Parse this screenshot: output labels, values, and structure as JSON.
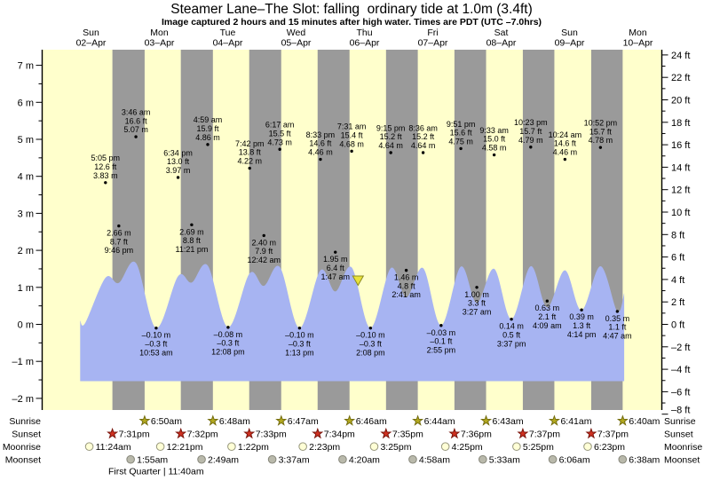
{
  "title": "Steamer Lane–The Slot: falling  ordinary tide at 1.0m (3.4ft)",
  "subtitle": "Image captured 2 hours and 15 minutes after high water. Times are PDT (UTC –7.0hrs)",
  "colors": {
    "plot_bg": "#ffffcc",
    "night_band": "#9a9a9a",
    "tide_fill": "#a7b4f2",
    "day_label": "#e53e30",
    "sunrise_star": "#b2a81f",
    "sunrise_star_edge": "#756e10",
    "sunset_star": "#d03020",
    "sunset_star_edge": "#7a150c",
    "moonrise_circle": "#ffffd6",
    "moonrise_circle_edge": "#99997f",
    "moonset_circle": "#b9b9ab",
    "moonset_circle_edge": "#88887c",
    "now_marker": "#e9e23a",
    "now_marker_edge": "#8a8a20"
  },
  "chart_data": {
    "type": "area",
    "title": "Steamer Lane–The Slot: falling  ordinary tide at 1.0m (3.4ft)",
    "subtitle": "Image captured 2 hours and 15 minutes after high water. Times are PDT (UTC –7.0hrs)",
    "y_left": {
      "unit": "m",
      "ticks": [
        7,
        6,
        5,
        4,
        3,
        2,
        1,
        0,
        -1,
        -2
      ]
    },
    "y_right": {
      "unit": "ft",
      "ticks": [
        24,
        22,
        20,
        18,
        16,
        14,
        12,
        10,
        8,
        6,
        4,
        2,
        0,
        -2,
        -4,
        -6,
        -8
      ]
    },
    "days": [
      {
        "name": "Sun",
        "date": "02–Apr"
      },
      {
        "name": "Mon",
        "date": "03–Apr"
      },
      {
        "name": "Tue",
        "date": "04–Apr"
      },
      {
        "name": "Wed",
        "date": "05–Apr"
      },
      {
        "name": "Thu",
        "date": "06–Apr"
      },
      {
        "name": "Fri",
        "date": "07–Apr"
      },
      {
        "name": "Sat",
        "date": "08–Apr"
      },
      {
        "name": "Sun",
        "date": "09–Apr"
      },
      {
        "name": "Mon",
        "date": "10–Apr"
      }
    ],
    "tide_events": [
      {
        "day": 0,
        "time": "5:05 pm",
        "m": 3.83,
        "ft": 12.6,
        "kind": "high"
      },
      {
        "day": 0,
        "time": "9:46 pm",
        "m": 2.66,
        "ft": 8.7,
        "kind": "low"
      },
      {
        "day": 1,
        "time": "3:46 am",
        "m": 5.07,
        "ft": 16.6,
        "kind": "high"
      },
      {
        "day": 1,
        "time": "10:53 am",
        "m": -0.1,
        "ft": -0.3,
        "kind": "low"
      },
      {
        "day": 1,
        "time": "6:34 pm",
        "m": 3.97,
        "ft": 13.0,
        "kind": "high"
      },
      {
        "day": 1,
        "time": "11:21 pm",
        "m": 2.69,
        "ft": 8.8,
        "kind": "low"
      },
      {
        "day": 2,
        "time": "4:59 am",
        "m": 4.86,
        "ft": 15.9,
        "kind": "high"
      },
      {
        "day": 2,
        "time": "12:08 pm",
        "m": -0.08,
        "ft": -0.3,
        "kind": "low"
      },
      {
        "day": 2,
        "time": "7:42 pm",
        "m": 4.22,
        "ft": 13.8,
        "kind": "high"
      },
      {
        "day": 3,
        "time": "12:42 am",
        "m": 2.4,
        "ft": 7.9,
        "kind": "low"
      },
      {
        "day": 3,
        "time": "6:17 am",
        "m": 4.73,
        "ft": 15.5,
        "kind": "high"
      },
      {
        "day": 3,
        "time": "1:13 pm",
        "m": -0.1,
        "ft": -0.3,
        "kind": "low"
      },
      {
        "day": 3,
        "time": "8:33 pm",
        "m": 4.46,
        "ft": 14.6,
        "kind": "high"
      },
      {
        "day": 4,
        "time": "1:47 am",
        "m": 1.95,
        "ft": 6.4,
        "kind": "low"
      },
      {
        "day": 4,
        "time": "7:31 am",
        "m": 4.68,
        "ft": 15.4,
        "kind": "high"
      },
      {
        "day": 4,
        "time": "2:08 pm",
        "m": -0.1,
        "ft": -0.3,
        "kind": "low"
      },
      {
        "day": 4,
        "time": "9:15 pm",
        "m": 4.64,
        "ft": 15.2,
        "kind": "high"
      },
      {
        "day": 5,
        "time": "2:41 am",
        "m": 1.46,
        "ft": 4.8,
        "kind": "low"
      },
      {
        "day": 5,
        "time": "8:36 am",
        "m": 4.64,
        "ft": 15.2,
        "kind": "high"
      },
      {
        "day": 5,
        "time": "2:55 pm",
        "m": -0.03,
        "ft": -0.1,
        "kind": "low"
      },
      {
        "day": 5,
        "time": "9:51 pm",
        "m": 4.75,
        "ft": 15.6,
        "kind": "high"
      },
      {
        "day": 6,
        "time": "3:27 am",
        "m": 1.0,
        "ft": 3.3,
        "kind": "low"
      },
      {
        "day": 6,
        "time": "9:33 am",
        "m": 4.58,
        "ft": 15.0,
        "kind": "high"
      },
      {
        "day": 6,
        "time": "3:37 pm",
        "m": 0.14,
        "ft": 0.5,
        "kind": "low"
      },
      {
        "day": 6,
        "time": "10:23 pm",
        "m": 4.79,
        "ft": 15.7,
        "kind": "high"
      },
      {
        "day": 7,
        "time": "4:09 am",
        "m": 0.63,
        "ft": 2.1,
        "kind": "low"
      },
      {
        "day": 7,
        "time": "10:24 am",
        "m": 4.46,
        "ft": 14.6,
        "kind": "high"
      },
      {
        "day": 7,
        "time": "4:14 pm",
        "m": 0.39,
        "ft": 1.3,
        "kind": "low"
      },
      {
        "day": 7,
        "time": "10:52 pm",
        "m": 4.78,
        "ft": 15.7,
        "kind": "high"
      },
      {
        "day": 8,
        "time": "4:47 am",
        "m": 0.35,
        "ft": 1.1,
        "kind": "low"
      }
    ],
    "curve_start": [
      {
        "day": 0,
        "hour": 8.2,
        "m": 0.1
      },
      {
        "day": 0,
        "hour": 10.0,
        "m": 0.04
      }
    ],
    "curve_end": [
      {
        "day": 8,
        "hour": 7.2,
        "m": 0.85
      }
    ],
    "current_marker": {
      "day": 4,
      "time": "9:46 am"
    }
  },
  "sun_moon": {
    "rows": [
      {
        "id": "sunrise",
        "label": "Sunrise",
        "entries": [
          {
            "day": 1,
            "time": "6:50am"
          },
          {
            "day": 2,
            "time": "6:48am"
          },
          {
            "day": 3,
            "time": "6:47am"
          },
          {
            "day": 4,
            "time": "6:46am"
          },
          {
            "day": 5,
            "time": "6:44am"
          },
          {
            "day": 6,
            "time": "6:43am"
          },
          {
            "day": 7,
            "time": "6:41am"
          },
          {
            "day": 8,
            "time": "6:40am"
          }
        ]
      },
      {
        "id": "sunset",
        "label": "Sunset",
        "entries": [
          {
            "day": 0,
            "time": "7:31pm"
          },
          {
            "day": 1,
            "time": "7:32pm"
          },
          {
            "day": 2,
            "time": "7:33pm"
          },
          {
            "day": 3,
            "time": "7:34pm"
          },
          {
            "day": 4,
            "time": "7:35pm"
          },
          {
            "day": 5,
            "time": "7:36pm"
          },
          {
            "day": 6,
            "time": "7:37pm"
          },
          {
            "day": 7,
            "time": "7:37pm"
          }
        ]
      },
      {
        "id": "moonrise",
        "label": "Moonrise",
        "entries": [
          {
            "day": 0,
            "time": "11:24am"
          },
          {
            "day": 1,
            "time": "12:21pm"
          },
          {
            "day": 2,
            "time": "1:22pm"
          },
          {
            "day": 3,
            "time": "2:23pm"
          },
          {
            "day": 4,
            "time": "3:25pm"
          },
          {
            "day": 5,
            "time": "4:25pm"
          },
          {
            "day": 6,
            "time": "5:25pm"
          },
          {
            "day": 7,
            "time": "6:23pm"
          }
        ]
      },
      {
        "id": "moonset",
        "label": "Moonset",
        "entries": [
          {
            "day": 1,
            "time": "1:55am"
          },
          {
            "day": 2,
            "time": "2:49am"
          },
          {
            "day": 3,
            "time": "3:37am"
          },
          {
            "day": 4,
            "time": "4:20am"
          },
          {
            "day": 5,
            "time": "4:58am"
          },
          {
            "day": 6,
            "time": "5:33am"
          },
          {
            "day": 7,
            "time": "6:06am"
          },
          {
            "day": 8,
            "time": "6:38am"
          }
        ]
      }
    ],
    "moon_phase_text": "First Quarter | 11:40am"
  }
}
